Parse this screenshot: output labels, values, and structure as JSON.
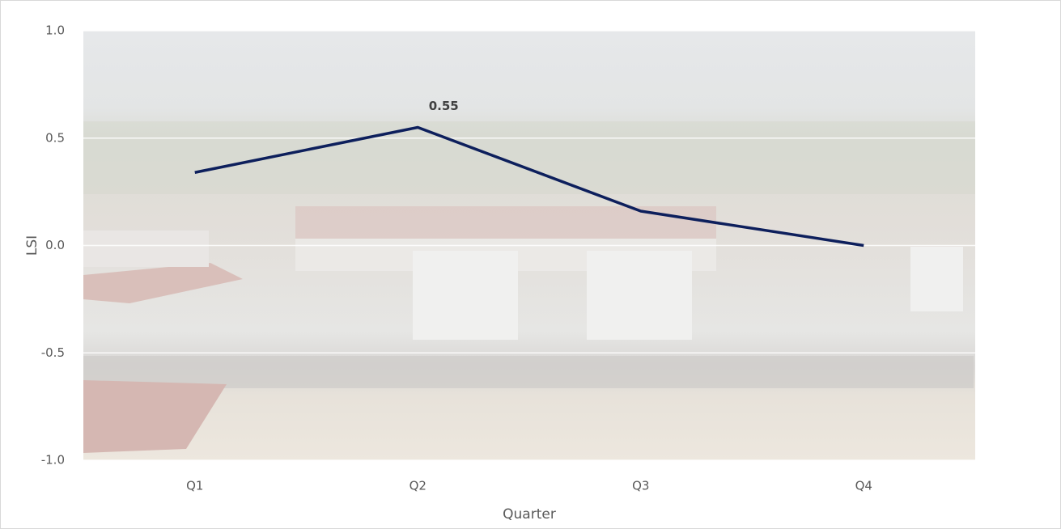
{
  "chart_data": {
    "type": "line",
    "categories": [
      "Q1",
      "Q2",
      "Q3",
      "Q4"
    ],
    "series": [
      {
        "name": "LSI",
        "color": "#0d1f5c",
        "values": [
          0.34,
          0.55,
          0.16,
          0.0
        ],
        "value_labels": [
          null,
          "0.55",
          null,
          null
        ]
      }
    ],
    "ylim": [
      -1.0,
      1.0
    ],
    "yticks": [
      {
        "value": -1.0,
        "label": "-1.0"
      },
      -0.5,
      {
        "value": 0.0,
        "label": "0.0"
      },
      0.5,
      {
        "value": 1.0,
        "label": "1.0"
      }
    ],
    "x_label": "Quarter",
    "y_label": "LSI",
    "grid": true
  }
}
